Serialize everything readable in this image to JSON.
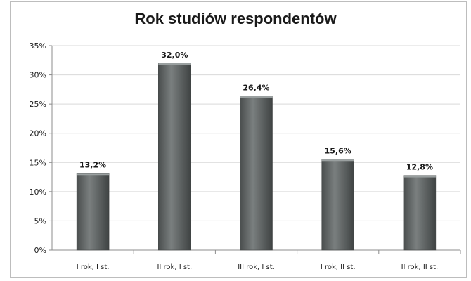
{
  "chart_data": {
    "type": "bar",
    "title": "Rok studiów respondentów",
    "categories": [
      "I rok, I st.",
      "II rok, I st.",
      "III rok, I st.",
      "I rok, II st.",
      "II rok, II st."
    ],
    "values": [
      13.2,
      32.0,
      26.4,
      15.6,
      12.8
    ],
    "value_labels": [
      "13,2%",
      "32,0%",
      "26,4%",
      "15,6%",
      "12,8%"
    ],
    "yticks": [
      "0%",
      "5%",
      "10%",
      "15%",
      "20%",
      "25%",
      "30%",
      "35%"
    ],
    "ylim": [
      0,
      35
    ],
    "grid": true,
    "bar_color": "#5f6464"
  }
}
